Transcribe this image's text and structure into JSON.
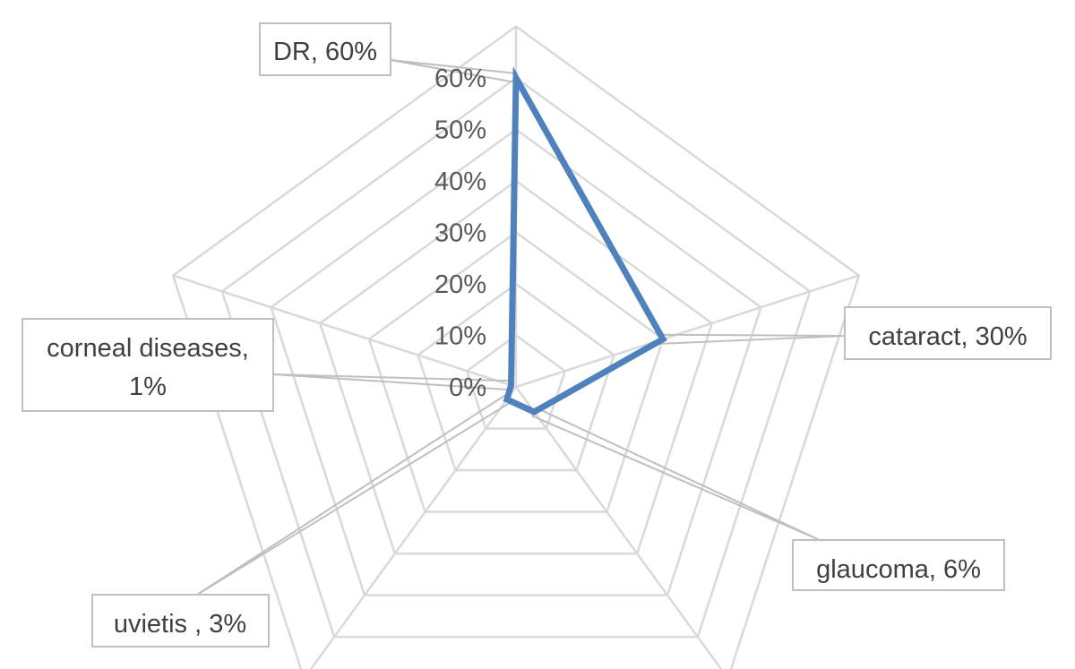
{
  "chart_data": {
    "type": "radar",
    "categories": [
      "DR",
      "cataract",
      "glaucoma",
      "uvietis",
      "corneal diseases"
    ],
    "series": [
      {
        "values": [
          60,
          30,
          6,
          3,
          1
        ]
      }
    ],
    "rlim": [
      0,
      60
    ],
    "tick_labels": [
      "0%",
      "10%",
      "20%",
      "30%",
      "40%",
      "50%",
      "60%"
    ],
    "grid": true,
    "series_color": "#4f81bd",
    "grid_color": "#d9d9d9",
    "data_labels": [
      {
        "lines": [
          "DR, 60%"
        ]
      },
      {
        "lines": [
          "cataract, 30%"
        ]
      },
      {
        "lines": [
          "glaucoma, 6%"
        ]
      },
      {
        "lines": [
          "uvietis , 3%"
        ]
      },
      {
        "lines": [
          "corneal diseases,",
          "1%"
        ]
      }
    ]
  }
}
